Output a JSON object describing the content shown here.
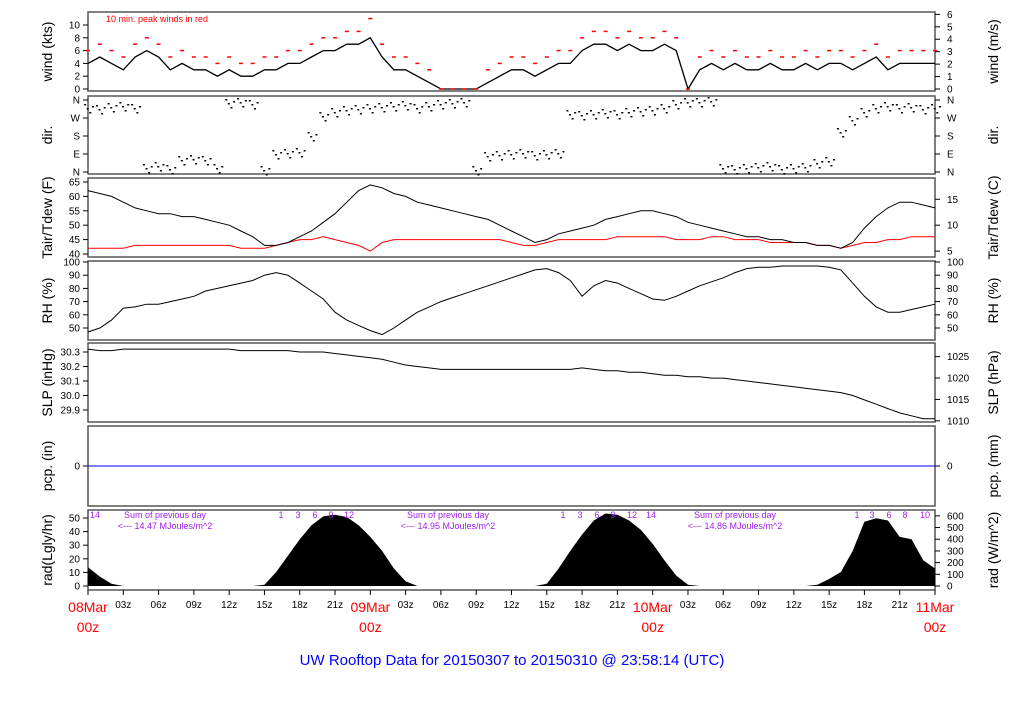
{
  "title": "UW Rooftop Data for 20150307  to  20150310 @ 23:58:14  (UTC)",
  "chart_data": {
    "type": "line",
    "time_axis": {
      "start": "08Mar 00z",
      "end": "11Mar 00z",
      "step_hours": 1,
      "tick_labels": [
        "03z",
        "06z",
        "09z",
        "12z",
        "15z",
        "18z",
        "21z",
        "03z",
        "06z",
        "09z",
        "12z",
        "15z",
        "18z",
        "21z",
        "03z",
        "06z",
        "09z",
        "12z",
        "15z",
        "18z",
        "21z"
      ],
      "day_labels": [
        [
          "08Mar",
          "00z"
        ],
        [
          "09Mar",
          "00z"
        ],
        [
          "10Mar",
          "00z"
        ],
        [
          "11Mar",
          "00z"
        ]
      ]
    },
    "colors": {
      "main": "#000000",
      "peak": "#ff0000",
      "dewpoint": "#ff0000",
      "precip": "#0000ff",
      "annotation": "#a020f0",
      "day_label": "#ff0000",
      "title": "#0000ff"
    },
    "panels": {
      "wind": {
        "ylabel_left": "wind (kts)",
        "ylabel_right": "wind (m/s)",
        "ylim": [
          0,
          11.7
        ],
        "ticks_left": [
          "0",
          "2",
          "4",
          "6",
          "8",
          "10"
        ],
        "ticks_right": [
          "0",
          "1",
          "2",
          "3",
          "4",
          "5",
          "6"
        ],
        "annotation": "10 min. peak winds in red",
        "speed": [
          4,
          5,
          4,
          3,
          5,
          6,
          5,
          3,
          4,
          3,
          3,
          2,
          3,
          2,
          2,
          3,
          3,
          4,
          4,
          5,
          6,
          6,
          7,
          7,
          8,
          5,
          3,
          3,
          2,
          1,
          0,
          0,
          0,
          0,
          1,
          2,
          3,
          3,
          2,
          3,
          4,
          4,
          6,
          7,
          7,
          6,
          7,
          6,
          6,
          7,
          6,
          0,
          3,
          4,
          3,
          4,
          3,
          3,
          4,
          3,
          3,
          4,
          3,
          4,
          4,
          3,
          4,
          5,
          3,
          4,
          4,
          4,
          4
        ],
        "peak": [
          6,
          7,
          6,
          5,
          7,
          8,
          7,
          5,
          6,
          5,
          5,
          4,
          5,
          4,
          4,
          5,
          5,
          6,
          6,
          7,
          8,
          8,
          9,
          9,
          11,
          7,
          5,
          5,
          4,
          3,
          0,
          0,
          0,
          0,
          3,
          4,
          5,
          5,
          4,
          5,
          6,
          6,
          8,
          9,
          9,
          8,
          9,
          8,
          8,
          9,
          8,
          0,
          5,
          6,
          5,
          6,
          5,
          5,
          6,
          5,
          5,
          6,
          5,
          6,
          6,
          5,
          6,
          7,
          5,
          6,
          6,
          6,
          6
        ]
      },
      "dir": {
        "ylabel_left": "dir.",
        "ylabel_right": "dir.",
        "ylim": [
          0,
          360
        ],
        "ticks": [
          "N",
          "E",
          "S",
          "W",
          "N"
        ],
        "degrees": [
          320,
          315,
          325,
          330,
          320,
          20,
          30,
          15,
          60,
          65,
          60,
          20,
          345,
          350,
          340,
          10,
          90,
          95,
          100,
          180,
          280,
          300,
          310,
          315,
          320,
          325,
          330,
          335,
          320,
          330,
          340,
          345,
          350,
          10,
          80,
          85,
          90,
          95,
          85,
          90,
          95,
          290,
          285,
          290,
          295,
          290,
          300,
          305,
          310,
          320,
          340,
          350,
          350,
          355,
          20,
          15,
          20,
          25,
          30,
          15,
          20,
          25,
          45,
          55,
          200,
          260,
          300,
          320,
          330,
          320,
          325,
          315,
          320
        ]
      },
      "temp": {
        "ylabel_left": "Tair/Tdew (F)",
        "ylabel_right": "Tair/Tdew (C)",
        "ylim": [
          39.5,
          65.5
        ],
        "ticks_left": [
          "40",
          "45",
          "50",
          "55",
          "60",
          "65"
        ],
        "ticks_right": [
          "5",
          "10",
          "15"
        ],
        "tair": [
          62,
          61,
          60,
          58,
          56,
          55,
          54,
          54,
          53,
          53,
          52,
          51,
          50,
          48,
          46,
          43,
          43,
          44,
          46,
          48,
          51,
          54,
          58,
          62,
          64,
          63,
          61,
          60,
          58,
          57,
          56,
          55,
          54,
          53,
          52,
          50,
          48,
          46,
          44,
          45,
          47,
          48,
          49,
          50,
          52,
          53,
          54,
          55,
          55,
          54,
          53,
          51,
          50,
          49,
          48,
          47,
          46,
          46,
          45,
          45,
          44,
          44,
          43,
          43,
          42,
          44,
          49,
          53,
          56,
          58,
          58,
          57,
          56
        ],
        "tdew": [
          42,
          42,
          42,
          42,
          43,
          43,
          43,
          43,
          43,
          43,
          43,
          43,
          43,
          42,
          42,
          42,
          43,
          44,
          45,
          45,
          46,
          45,
          44,
          43,
          41,
          44,
          45,
          45,
          45,
          45,
          45,
          45,
          45,
          45,
          45,
          45,
          44,
          43,
          43,
          44,
          45,
          45,
          45,
          45,
          45,
          46,
          46,
          46,
          46,
          46,
          45,
          45,
          45,
          46,
          46,
          45,
          45,
          45,
          44,
          44,
          44,
          44,
          43,
          43,
          42,
          43,
          44,
          44,
          45,
          45,
          46,
          46,
          46
        ]
      },
      "rh": {
        "ylabel_left": "RH (%)",
        "ylabel_right": "RH (%)",
        "ylim": [
          40,
          100
        ],
        "ticks": [
          "50",
          "60",
          "70",
          "80",
          "90",
          "100"
        ],
        "values": [
          47,
          50,
          56,
          65,
          66,
          68,
          68,
          70,
          72,
          74,
          78,
          80,
          82,
          84,
          86,
          90,
          92,
          90,
          84,
          78,
          72,
          62,
          56,
          52,
          48,
          45,
          50,
          56,
          62,
          66,
          70,
          73,
          76,
          79,
          82,
          85,
          88,
          91,
          94,
          95,
          92,
          86,
          74,
          82,
          86,
          84,
          80,
          76,
          72,
          71,
          74,
          78,
          82,
          85,
          88,
          92,
          95,
          96,
          96,
          97,
          97,
          97,
          97,
          96,
          94,
          84,
          74,
          66,
          62,
          62,
          64,
          66,
          68
        ]
      },
      "slp": {
        "ylabel_left": "SLP (inHg)",
        "ylabel_right": "SLP (hPa)",
        "ylim": [
          29.83,
          30.36
        ],
        "ticks_left": [
          "29.9",
          "30.0",
          "30.1",
          "30.2",
          "30.3"
        ],
        "ticks_right": [
          "1010",
          "1015",
          "1020",
          "1025"
        ],
        "values": [
          30.32,
          30.31,
          30.31,
          30.32,
          30.32,
          30.32,
          30.32,
          30.32,
          30.32,
          30.32,
          30.32,
          30.32,
          30.32,
          30.31,
          30.31,
          30.31,
          30.31,
          30.31,
          30.3,
          30.3,
          30.3,
          30.29,
          30.28,
          30.27,
          30.26,
          30.25,
          30.23,
          30.21,
          30.2,
          30.19,
          30.18,
          30.18,
          30.18,
          30.18,
          30.18,
          30.18,
          30.18,
          30.18,
          30.18,
          30.18,
          30.18,
          30.18,
          30.19,
          30.18,
          30.17,
          30.17,
          30.16,
          30.16,
          30.15,
          30.14,
          30.14,
          30.13,
          30.13,
          30.12,
          30.12,
          30.11,
          30.1,
          30.09,
          30.08,
          30.07,
          30.06,
          30.05,
          30.04,
          30.03,
          30.02,
          30.0,
          29.97,
          29.94,
          29.91,
          29.88,
          29.86,
          29.84,
          29.84
        ]
      },
      "pcp": {
        "ylabel_left": "pcp. (in)",
        "ylabel_right": "pcp. (mm)",
        "ticks_left": [
          "0"
        ],
        "ticks_right": [
          "0"
        ],
        "value": 0
      },
      "rad": {
        "ylabel_left": "rad(Lgly/hr)",
        "ylabel_right": "rad (W/m^2)",
        "ylim": [
          0,
          600
        ],
        "ticks_left": [
          "0",
          "10",
          "20",
          "30",
          "40",
          "50"
        ],
        "ticks_right": [
          "0",
          "100",
          "200",
          "300",
          "400",
          "500",
          "600"
        ],
        "values": [
          160,
          80,
          20,
          0,
          0,
          0,
          0,
          0,
          0,
          0,
          0,
          0,
          0,
          0,
          0,
          10,
          120,
          260,
          400,
          520,
          595,
          610,
          590,
          520,
          420,
          300,
          150,
          40,
          0,
          0,
          0,
          0,
          0,
          0,
          0,
          0,
          0,
          0,
          0,
          20,
          150,
          300,
          440,
          560,
          620,
          610,
          560,
          480,
          360,
          220,
          90,
          10,
          0,
          0,
          0,
          0,
          0,
          0,
          0,
          0,
          0,
          0,
          10,
          60,
          120,
          300,
          550,
          580,
          560,
          420,
          400,
          220,
          150
        ],
        "annotations": [
          {
            "hour_marks": "14",
            "sum_label": "Sum of previous day",
            "sum_value": "<--- 14.47 MJoules/m^2"
          },
          {
            "hour_marks": [
              "1",
              "3",
              "6",
              "9",
              "12"
            ],
            "sum_label": "Sum of previous day",
            "sum_value": "<--- 14.95 MJoules/m^2"
          },
          {
            "hour_marks": [
              "1",
              "3",
              "6",
              "9",
              "12",
              "14"
            ],
            "sum_label": "Sum of previous day",
            "sum_value": "<--- 14.86 MJoules/m^2"
          },
          {
            "hour_marks": [
              "1",
              "3",
              "6",
              "8",
              "10"
            ]
          }
        ]
      }
    }
  }
}
